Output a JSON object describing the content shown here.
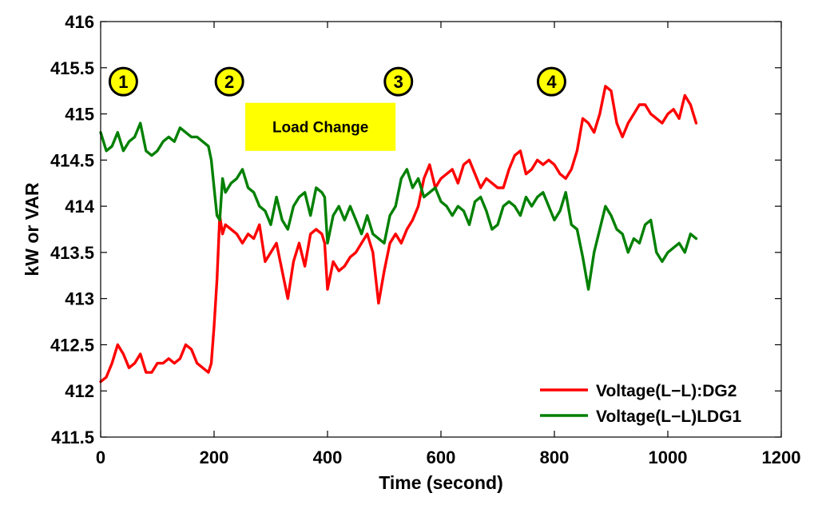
{
  "chart_data": {
    "type": "line",
    "title": "",
    "xlabel": "Time (second)",
    "ylabel": "kW or VAR",
    "xlim": [
      0,
      1200
    ],
    "ylim": [
      411.5,
      416
    ],
    "xticks": [
      0,
      200,
      400,
      600,
      800,
      1000,
      1200
    ],
    "xtick_labels": [
      "0",
      "200",
      "400",
      "600",
      "800",
      "1000",
      "1200"
    ],
    "yticks": [
      411.5,
      412,
      412.5,
      413,
      413.5,
      414,
      414.5,
      415,
      415.5,
      416
    ],
    "ytick_labels": [
      "411.5",
      "412",
      "412.5",
      "413",
      "413.5",
      "414",
      "414.5",
      "415",
      "415.5",
      "416"
    ],
    "grid": false,
    "legend_position": "bottom-right",
    "series": [
      {
        "name": "Voltage(L−L):DG2",
        "color": "#ff0000",
        "x": [
          0,
          10,
          20,
          30,
          40,
          50,
          60,
          70,
          80,
          90,
          100,
          110,
          120,
          130,
          140,
          150,
          160,
          170,
          180,
          190,
          195,
          200,
          205,
          210,
          215,
          220,
          230,
          240,
          250,
          260,
          270,
          280,
          290,
          300,
          310,
          320,
          330,
          340,
          350,
          360,
          370,
          380,
          390,
          395,
          400,
          410,
          420,
          430,
          440,
          450,
          460,
          470,
          480,
          490,
          500,
          510,
          520,
          530,
          540,
          550,
          560,
          570,
          580,
          590,
          600,
          610,
          620,
          630,
          640,
          650,
          660,
          670,
          680,
          690,
          700,
          710,
          720,
          730,
          740,
          750,
          760,
          770,
          780,
          790,
          800,
          810,
          820,
          830,
          840,
          850,
          860,
          870,
          880,
          890,
          900,
          910,
          920,
          930,
          940,
          950,
          960,
          970,
          980,
          990,
          1000,
          1010,
          1020,
          1030,
          1040,
          1050
        ],
        "y": [
          412.1,
          412.15,
          412.3,
          412.5,
          412.4,
          412.25,
          412.3,
          412.4,
          412.2,
          412.2,
          412.3,
          412.3,
          412.35,
          412.3,
          412.35,
          412.5,
          412.45,
          412.3,
          412.25,
          412.2,
          412.3,
          412.7,
          413.2,
          413.9,
          413.7,
          413.8,
          413.75,
          413.7,
          413.6,
          413.7,
          413.65,
          413.8,
          413.4,
          413.5,
          413.6,
          413.3,
          413.0,
          413.4,
          413.6,
          413.35,
          413.7,
          413.75,
          413.7,
          413.6,
          413.1,
          413.4,
          413.3,
          413.35,
          413.45,
          413.5,
          413.6,
          413.7,
          413.5,
          412.95,
          413.3,
          413.6,
          413.7,
          413.6,
          413.75,
          413.85,
          414.0,
          414.3,
          414.45,
          414.2,
          414.3,
          414.35,
          414.4,
          414.25,
          414.45,
          414.5,
          414.35,
          414.2,
          414.3,
          414.25,
          414.2,
          414.2,
          414.4,
          414.55,
          414.6,
          414.35,
          414.4,
          414.5,
          414.45,
          414.5,
          414.45,
          414.35,
          414.3,
          414.4,
          414.6,
          414.95,
          414.9,
          414.8,
          415.0,
          415.3,
          415.25,
          414.9,
          414.75,
          414.9,
          415.0,
          415.1,
          415.1,
          415.0,
          414.95,
          414.9,
          415.0,
          415.05,
          414.95,
          415.2,
          415.1,
          414.9
        ]
      },
      {
        "name": "Voltage(L−L)LDG1",
        "color": "#008000",
        "x": [
          0,
          10,
          20,
          30,
          40,
          50,
          60,
          70,
          80,
          90,
          100,
          110,
          120,
          130,
          140,
          150,
          160,
          170,
          180,
          190,
          195,
          200,
          205,
          210,
          215,
          220,
          230,
          240,
          250,
          260,
          270,
          280,
          290,
          300,
          310,
          320,
          330,
          340,
          350,
          360,
          370,
          380,
          390,
          395,
          400,
          410,
          420,
          430,
          440,
          450,
          460,
          470,
          480,
          490,
          500,
          510,
          520,
          530,
          540,
          550,
          560,
          570,
          580,
          590,
          600,
          610,
          620,
          630,
          640,
          650,
          660,
          670,
          680,
          690,
          700,
          710,
          720,
          730,
          740,
          750,
          760,
          770,
          780,
          790,
          800,
          810,
          820,
          830,
          840,
          850,
          860,
          870,
          880,
          890,
          900,
          910,
          920,
          930,
          940,
          950,
          960,
          970,
          980,
          990,
          1000,
          1010,
          1020,
          1030,
          1040,
          1050
        ],
        "y": [
          414.8,
          414.6,
          414.65,
          414.8,
          414.6,
          414.7,
          414.75,
          414.9,
          414.6,
          414.55,
          414.6,
          414.7,
          414.75,
          414.7,
          414.85,
          414.8,
          414.75,
          414.75,
          414.7,
          414.65,
          414.5,
          414.2,
          413.9,
          413.85,
          414.3,
          414.15,
          414.25,
          414.3,
          414.4,
          414.2,
          414.15,
          414.0,
          413.95,
          413.8,
          414.1,
          413.85,
          413.75,
          414.0,
          414.1,
          414.15,
          413.9,
          414.2,
          414.15,
          414.1,
          413.6,
          413.9,
          414.0,
          413.85,
          414.0,
          413.85,
          413.7,
          413.9,
          413.7,
          413.65,
          413.6,
          413.9,
          414.0,
          414.3,
          414.4,
          414.2,
          414.3,
          414.1,
          414.15,
          414.2,
          414.05,
          414.0,
          413.9,
          414.0,
          413.95,
          413.8,
          414.05,
          414.1,
          413.95,
          413.75,
          413.8,
          414.0,
          414.05,
          414.0,
          413.9,
          414.1,
          414.0,
          414.1,
          414.15,
          414.0,
          413.85,
          413.95,
          414.15,
          413.8,
          413.75,
          413.45,
          413.1,
          413.5,
          413.75,
          414.0,
          413.9,
          413.75,
          413.7,
          413.5,
          413.65,
          413.6,
          413.8,
          413.85,
          413.5,
          413.4,
          413.5,
          413.55,
          413.6,
          413.5,
          413.7,
          413.65
        ]
      }
    ],
    "annotations": [
      {
        "label": "1",
        "x": 40,
        "y": 415.35
      },
      {
        "label": "2",
        "x": 227,
        "y": 415.35
      },
      {
        "label": "3",
        "x": 525,
        "y": 415.35
      },
      {
        "label": "4",
        "x": 795,
        "y": 415.35
      }
    ],
    "callout_box": {
      "text": "Load Change",
      "x_start": 255,
      "x_end": 520,
      "y_top": 415.12,
      "y_bottom": 414.6
    },
    "colors": {
      "annotation_fill": "#ffff00",
      "axis": "#000000"
    }
  }
}
